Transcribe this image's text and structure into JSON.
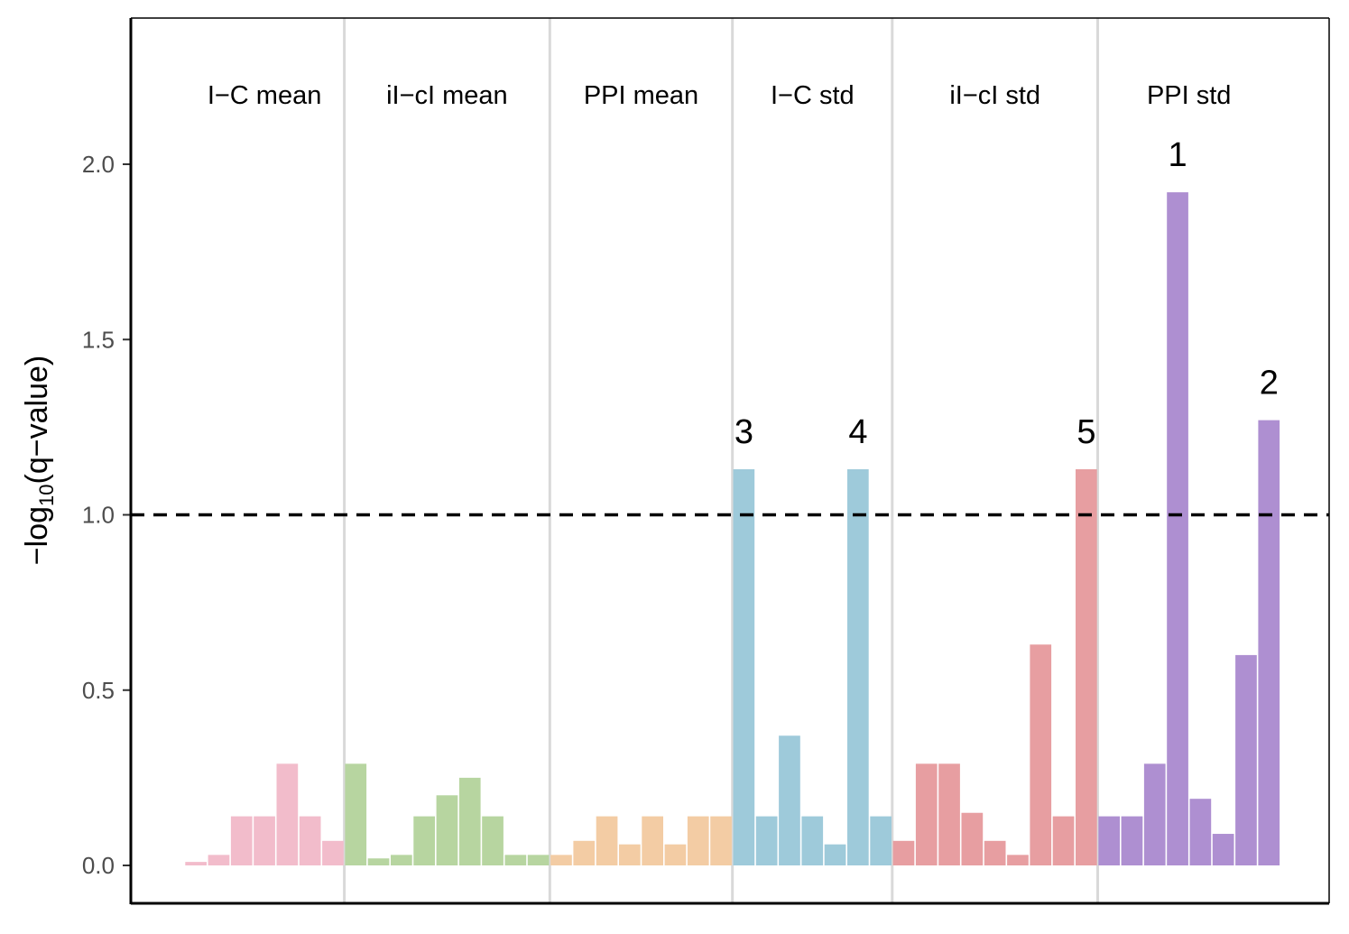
{
  "chart_data": {
    "type": "bar",
    "title": "",
    "xlabel": "",
    "ylabel": "−log10(q−value)",
    "ylabel_parts": {
      "prefix": "−log",
      "subscript": "10",
      "suffix": "(q−value)"
    },
    "ylim": [
      -0.1,
      2.4
    ],
    "yticks": [
      0.0,
      0.5,
      1.0,
      1.5,
      2.0
    ],
    "ytick_labels": [
      "0.0",
      "0.5",
      "1.0",
      "1.5",
      "2.0"
    ],
    "threshold": 1.0,
    "grid": false,
    "groups": [
      {
        "name": "I−C mean",
        "color": "#f2bccb",
        "values": [
          0.01,
          0.03,
          0.14,
          0.14,
          0.29,
          0.14,
          0.07
        ]
      },
      {
        "name": "iI−cI mean",
        "color": "#b7d5a0",
        "values": [
          0.29,
          0.02,
          0.03,
          0.14,
          0.2,
          0.25,
          0.14,
          0.03,
          0.03
        ]
      },
      {
        "name": "PPI mean",
        "color": "#f3cca4",
        "values": [
          0.03,
          0.07,
          0.14,
          0.06,
          0.14,
          0.06,
          0.14,
          0.14
        ]
      },
      {
        "name": "I−C std",
        "color": "#9ecada",
        "values": [
          1.13,
          0.14,
          0.37,
          0.14,
          0.06,
          1.13,
          0.14
        ]
      },
      {
        "name": "iI−cI std",
        "color": "#e79ea1",
        "values": [
          0.07,
          0.29,
          0.29,
          0.15,
          0.07,
          0.03,
          0.63,
          0.14,
          1.13
        ]
      },
      {
        "name": "PPI std",
        "color": "#ae8fd1",
        "values": [
          0.14,
          0.14,
          0.29,
          1.92,
          0.19,
          0.09,
          0.6,
          1.27
        ]
      }
    ],
    "annotations": [
      {
        "label": "3",
        "group": 3,
        "index": 0
      },
      {
        "label": "4",
        "group": 3,
        "index": 5
      },
      {
        "label": "5",
        "group": 4,
        "index": 8
      },
      {
        "label": "1",
        "group": 5,
        "index": 3
      },
      {
        "label": "2",
        "group": 5,
        "index": 7
      }
    ],
    "colors": {
      "axis": "#000000",
      "separator": "#d9d9d9",
      "threshold": "#000000",
      "tick_text": "#4d4d4d"
    }
  }
}
